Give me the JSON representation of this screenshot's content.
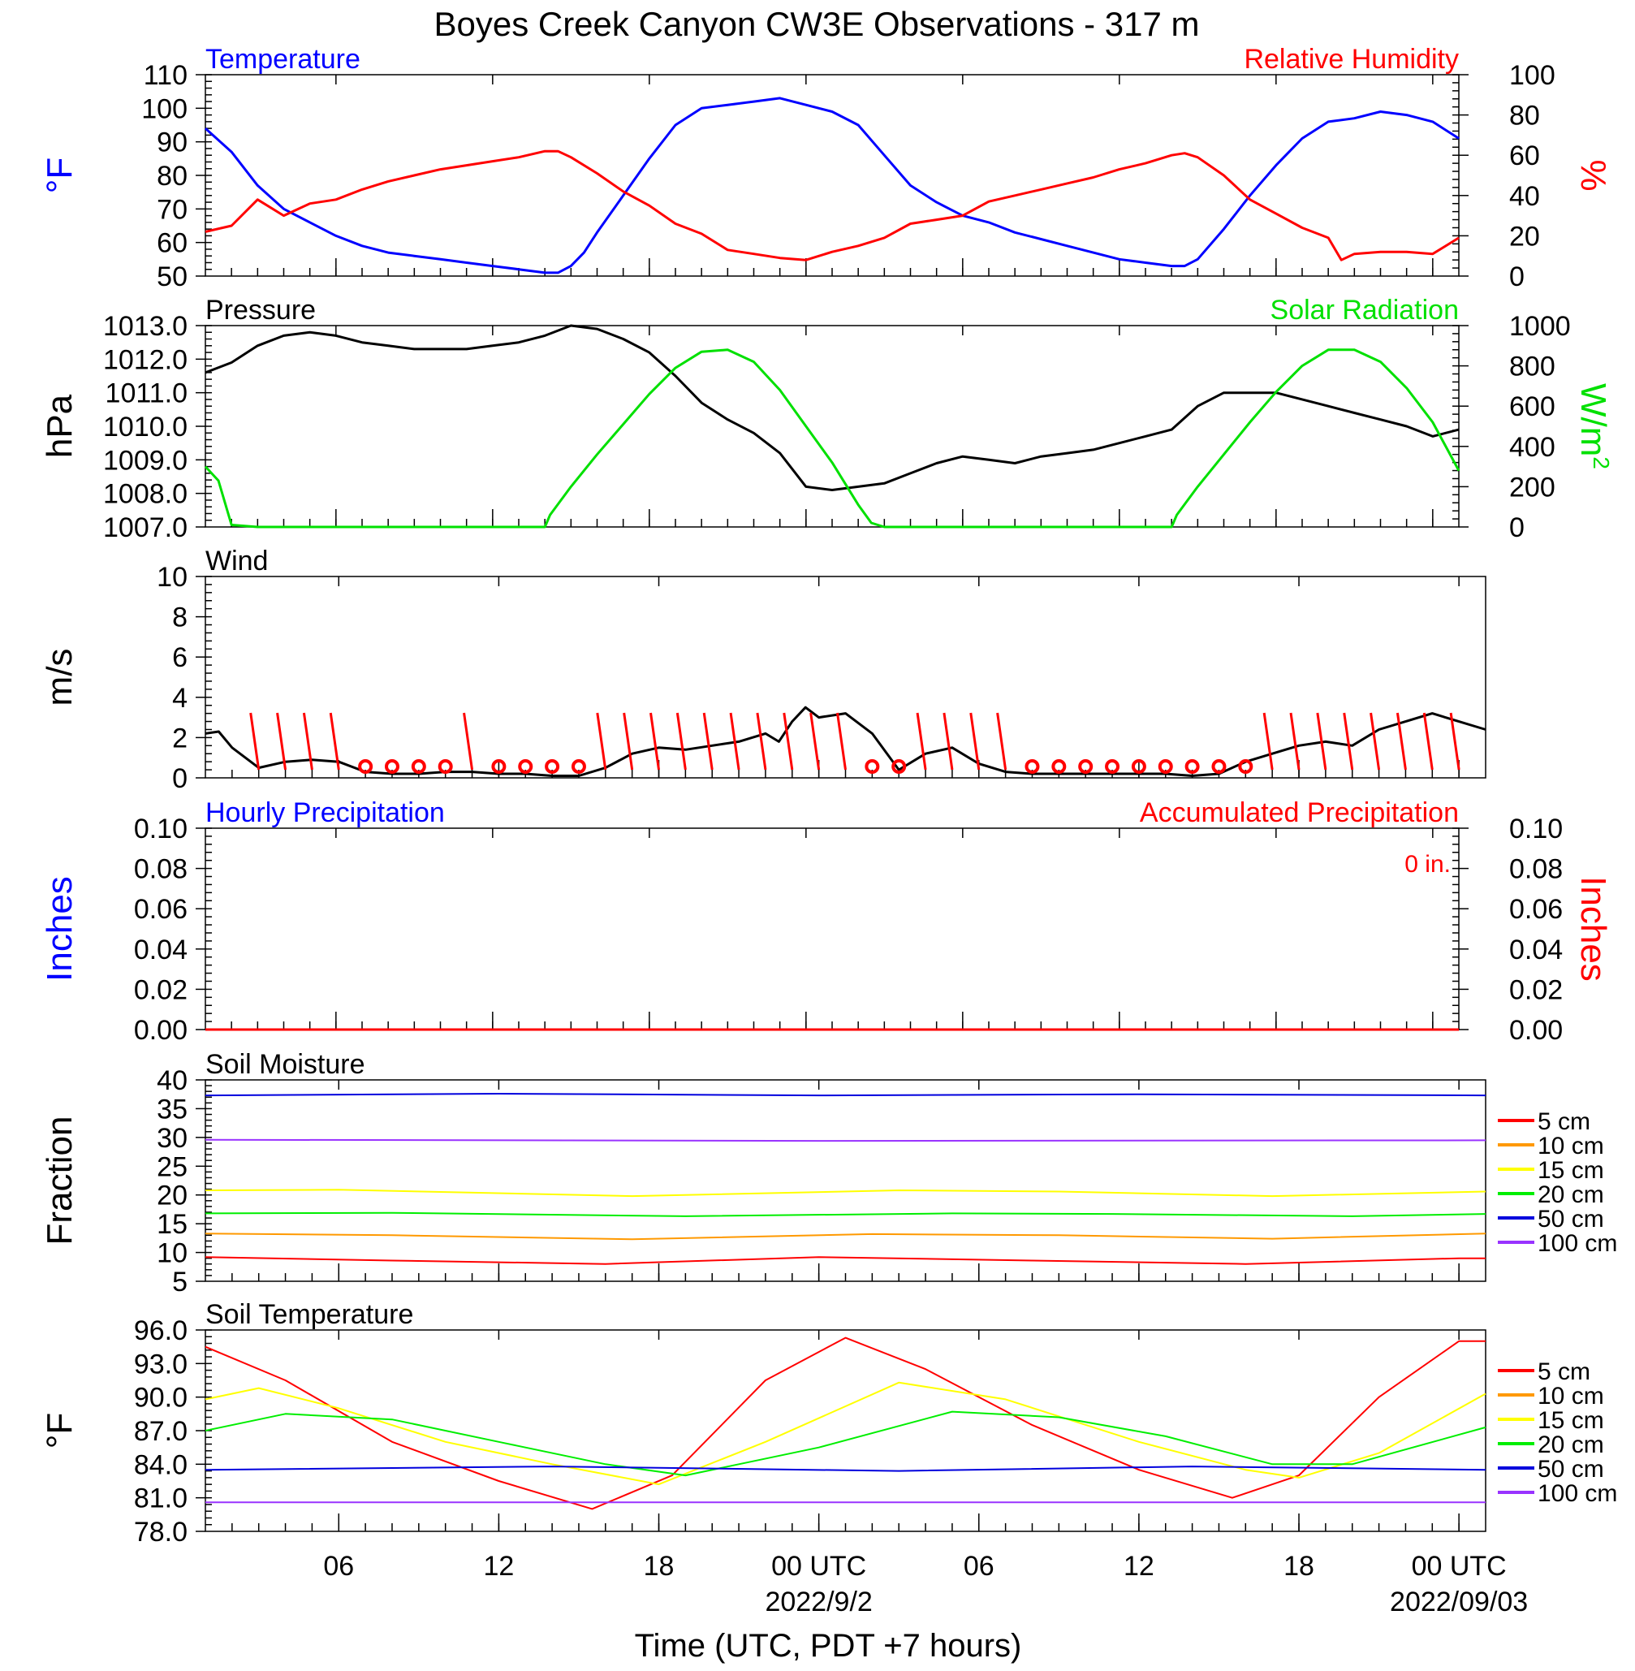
{
  "page": {
    "title": "Boyes Creek Canyon CW3E Observations - 317 m",
    "x_axis_title": "Time (UTC, PDT +7 hours)",
    "x_ticks": [
      {
        "hour": 6,
        "label": "06"
      },
      {
        "hour": 12,
        "label": "12"
      },
      {
        "hour": 18,
        "label": "18"
      },
      {
        "hour": 24,
        "label": "00 UTC",
        "date": "2022/9/2"
      },
      {
        "hour": 30,
        "label": "06"
      },
      {
        "hour": 36,
        "label": "12"
      },
      {
        "hour": 42,
        "label": "18"
      },
      {
        "hour": 48,
        "label": "00 UTC",
        "date": "2022/09/03"
      }
    ]
  },
  "colors": {
    "temperature": "#0000ff",
    "humidity": "#ff0000",
    "pressure": "#000000",
    "solar": "#00e000",
    "wind": "#000000",
    "barb": "#ff0000",
    "soil": {
      "5 cm": "#ff0000",
      "10 cm": "#ff9900",
      "15 cm": "#ffff00",
      "20 cm": "#00ee00",
      "50 cm": "#0000dd",
      "100 cm": "#9933ff"
    }
  },
  "chart_data": [
    {
      "type": "line",
      "panel": "temperature-humidity",
      "left_title": "Temperature",
      "right_title": "Relative Humidity",
      "ylabel": "°F",
      "ylabel_right": "%",
      "ylim": [
        50,
        110
      ],
      "ylim_right": [
        0,
        100
      ],
      "yticks": [
        "110",
        "100",
        "90",
        "80",
        "70",
        "60",
        "50"
      ],
      "yticks_right": [
        "100",
        "80",
        "60",
        "40",
        "20",
        "0"
      ],
      "xlim": [
        1,
        49
      ],
      "series": [
        {
          "key": "temperature",
          "axis": "left",
          "x": [
            1,
            2,
            3,
            4,
            5,
            6,
            7,
            8,
            9,
            10,
            11,
            12,
            13,
            14,
            14.5,
            15,
            15.5,
            16,
            17,
            18,
            19,
            20,
            21,
            22,
            23,
            24,
            25,
            26,
            27,
            28,
            29,
            30,
            31,
            32,
            33,
            34,
            35,
            36,
            37,
            38,
            38.5,
            39,
            40,
            41,
            42,
            43,
            44,
            45,
            46,
            47,
            48,
            49
          ],
          "y": [
            94,
            87,
            77,
            70,
            66,
            62,
            59,
            57,
            56,
            55,
            54,
            53,
            52,
            51,
            51,
            53,
            57,
            63,
            74,
            85,
            95,
            100,
            101,
            102,
            103,
            101,
            99,
            95,
            86,
            77,
            72,
            68,
            66,
            63,
            61,
            59,
            57,
            55,
            54,
            53,
            53,
            55,
            64,
            74,
            83,
            91,
            96,
            97,
            99,
            98,
            96,
            91
          ]
        },
        {
          "key": "humidity",
          "axis": "right",
          "x": [
            1,
            2,
            3,
            4,
            5,
            6,
            7,
            8,
            9,
            10,
            11,
            12,
            13,
            14,
            14.5,
            15,
            16,
            17,
            18,
            19,
            20,
            21,
            22,
            23,
            24,
            25,
            26,
            27,
            28,
            29,
            30,
            31,
            32,
            33,
            34,
            35,
            36,
            37,
            38,
            38.5,
            39,
            40,
            41,
            42,
            43,
            44,
            44.5,
            45,
            46,
            47,
            48,
            49
          ],
          "y": [
            22,
            25,
            38,
            30,
            36,
            38,
            43,
            47,
            50,
            53,
            55,
            57,
            59,
            62,
            62,
            59,
            51,
            42,
            35,
            26,
            21,
            13,
            11,
            9,
            8,
            12,
            15,
            19,
            26,
            28,
            30,
            37,
            40,
            43,
            46,
            49,
            53,
            56,
            60,
            61,
            59,
            50,
            38,
            31,
            24,
            19,
            8,
            11,
            12,
            12,
            11,
            19
          ]
        }
      ]
    },
    {
      "type": "line",
      "panel": "pressure-solar",
      "left_title": "Pressure",
      "right_title": "Solar Radiation",
      "ylabel": "hPa",
      "ylabel_right": "W/m",
      "ylabel_right_sup": "2",
      "ylim": [
        1007,
        1013
      ],
      "ylim_right": [
        0,
        1000
      ],
      "yticks": [
        "1013.0",
        "1012.0",
        "1011.0",
        "1010.0",
        "1009.0",
        "1008.0",
        "1007.0"
      ],
      "yticks_right": [
        "1000",
        "800",
        "600",
        "400",
        "200",
        "0"
      ],
      "xlim": [
        1,
        49
      ],
      "series": [
        {
          "key": "pressure",
          "axis": "left",
          "x": [
            1,
            2,
            3,
            4,
            5,
            6,
            7,
            8,
            9,
            10,
            11,
            12,
            13,
            14,
            15,
            16,
            17,
            18,
            19,
            20,
            21,
            22,
            23,
            24,
            25,
            26,
            27,
            28,
            29,
            30,
            31,
            32,
            33,
            34,
            35,
            36,
            37,
            38,
            39,
            40,
            41,
            42,
            43,
            44,
            45,
            46,
            47,
            48,
            49
          ],
          "y": [
            1011.6,
            1011.9,
            1012.4,
            1012.7,
            1012.8,
            1012.7,
            1012.5,
            1012.4,
            1012.3,
            1012.3,
            1012.3,
            1012.4,
            1012.5,
            1012.7,
            1013.0,
            1012.9,
            1012.6,
            1012.2,
            1011.5,
            1010.7,
            1010.2,
            1009.8,
            1009.2,
            1008.2,
            1008.1,
            1008.2,
            1008.3,
            1008.6,
            1008.9,
            1009.1,
            1009.0,
            1008.9,
            1009.1,
            1009.2,
            1009.3,
            1009.5,
            1009.7,
            1009.9,
            1010.6,
            1011.0,
            1011.0,
            1011.0,
            1010.8,
            1010.6,
            1010.4,
            1010.2,
            1010.0,
            1009.7,
            1009.9
          ]
        },
        {
          "key": "solar",
          "axis": "right",
          "x": [
            1,
            1.5,
            2,
            3,
            13,
            14,
            14.2,
            15,
            16,
            17,
            18,
            19,
            20,
            21,
            22,
            23,
            24,
            25,
            26,
            26.5,
            27,
            28,
            37,
            38,
            38.2,
            39,
            40,
            41,
            42,
            43,
            44,
            45,
            46,
            47,
            48,
            49
          ],
          "y": [
            300,
            230,
            10,
            0,
            0,
            0,
            60,
            200,
            360,
            510,
            660,
            790,
            870,
            880,
            820,
            680,
            500,
            320,
            110,
            20,
            0,
            0,
            0,
            0,
            60,
            200,
            360,
            520,
            670,
            800,
            880,
            880,
            820,
            690,
            520,
            280
          ]
        }
      ]
    },
    {
      "type": "line",
      "panel": "wind",
      "left_title": "Wind",
      "ylabel": "m/s",
      "ylim": [
        0,
        10
      ],
      "yticks": [
        "10",
        "8",
        "6",
        "4",
        "2",
        "0"
      ],
      "xlim": [
        1,
        49
      ],
      "series": [
        {
          "key": "wind",
          "axis": "left",
          "x": [
            1,
            1.5,
            2,
            3,
            4,
            5,
            6,
            7,
            8,
            9,
            10,
            11,
            12,
            13,
            14,
            15,
            16,
            17,
            18,
            19,
            20,
            21,
            22,
            22.5,
            23,
            23.5,
            24,
            25,
            26,
            27,
            28,
            29,
            30,
            31,
            32,
            33,
            34,
            35,
            36,
            37,
            38,
            39,
            40,
            41,
            42,
            43,
            44,
            45,
            46,
            47,
            48,
            49
          ],
          "y": [
            2.2,
            2.3,
            1.5,
            0.5,
            0.8,
            0.9,
            0.8,
            0.3,
            0.2,
            0.2,
            0.3,
            0.3,
            0.2,
            0.2,
            0.1,
            0.1,
            0.5,
            1.2,
            1.5,
            1.4,
            1.6,
            1.8,
            2.2,
            1.8,
            2.8,
            3.5,
            3.0,
            3.2,
            2.2,
            0.4,
            1.2,
            1.5,
            0.7,
            0.3,
            0.2,
            0.2,
            0.2,
            0.2,
            0.2,
            0.2,
            0.1,
            0.2,
            0.8,
            1.2,
            1.6,
            1.8,
            1.6,
            2.4,
            2.8,
            3.2,
            2.8,
            2.4
          ]
        }
      ],
      "calm_hours": [
        7,
        8,
        9,
        10,
        12,
        13,
        14,
        15,
        26,
        27,
        32,
        33,
        34,
        35,
        36,
        37,
        38,
        39,
        40
      ],
      "barb_hours": [
        3,
        4,
        5,
        6,
        11,
        16,
        17,
        18,
        19,
        20,
        21,
        22,
        23,
        24,
        25,
        28,
        29,
        30,
        31,
        41,
        42,
        43,
        44,
        45,
        46,
        47,
        48
      ]
    },
    {
      "type": "bar",
      "panel": "precipitation",
      "left_title": "Hourly Precipitation",
      "right_title": "Accumulated Precipitation",
      "annotation": "0 in.",
      "ylabel": "Inches",
      "ylabel_right": "Inches",
      "ylim": [
        0,
        0.1
      ],
      "ylim_right": [
        0,
        0.1
      ],
      "yticks": [
        "0.10",
        "0.08",
        "0.06",
        "0.04",
        "0.02",
        "0.00"
      ],
      "yticks_right": [
        "0.10",
        "0.08",
        "0.06",
        "0.04",
        "0.02",
        "0.00"
      ],
      "xlim": [
        1,
        49
      ],
      "values": [
        0
      ]
    },
    {
      "type": "line",
      "panel": "soil-moisture",
      "left_title": "Soil Moisture",
      "ylabel": "Fraction",
      "ylim": [
        5,
        40
      ],
      "yticks": [
        "40",
        "35",
        "30",
        "25",
        "20",
        "15",
        "10",
        "5"
      ],
      "xlim": [
        1,
        49
      ],
      "series": [
        {
          "name": "5 cm",
          "x": [
            1,
            8,
            16,
            24,
            32,
            40,
            48,
            49
          ],
          "y": [
            9.2,
            8.6,
            8.0,
            9.2,
            8.6,
            8.0,
            9.0,
            9.0
          ]
        },
        {
          "name": "10 cm",
          "x": [
            1,
            8,
            17,
            26,
            33,
            41,
            49
          ],
          "y": [
            13.3,
            13.0,
            12.3,
            13.2,
            13.0,
            12.4,
            13.3
          ]
        },
        {
          "name": "15 cm",
          "x": [
            1,
            6,
            17,
            27,
            33,
            41,
            49
          ],
          "y": [
            20.8,
            20.9,
            19.8,
            20.8,
            20.6,
            19.8,
            20.6
          ]
        },
        {
          "name": "20 cm",
          "x": [
            1,
            8,
            19,
            29,
            35,
            44,
            49
          ],
          "y": [
            16.8,
            16.9,
            16.3,
            16.8,
            16.7,
            16.3,
            16.7
          ]
        },
        {
          "name": "50 cm",
          "x": [
            1,
            12,
            24,
            36,
            49
          ],
          "y": [
            37.3,
            37.6,
            37.3,
            37.5,
            37.3
          ]
        },
        {
          "name": "100 cm",
          "x": [
            1,
            24,
            49
          ],
          "y": [
            29.6,
            29.4,
            29.5
          ]
        }
      ]
    },
    {
      "type": "line",
      "panel": "soil-temperature",
      "left_title": "Soil Temperature",
      "ylabel": "°F",
      "ylim": [
        78,
        96
      ],
      "yticks": [
        "96.0",
        "93.0",
        "90.0",
        "87.0",
        "84.0",
        "81.0",
        "78.0"
      ],
      "xlim": [
        1,
        49
      ],
      "series": [
        {
          "name": "5 cm",
          "x": [
            1,
            4,
            8,
            12,
            15.5,
            18.5,
            22,
            25,
            28,
            32,
            36,
            39.5,
            42,
            45,
            48,
            49
          ],
          "y": [
            94.5,
            91.5,
            86.0,
            82.5,
            80.0,
            83.0,
            91.5,
            95.3,
            92.5,
            87.5,
            83.5,
            81.0,
            83.0,
            90.0,
            95.0,
            95.0
          ]
        },
        {
          "name": "15 cm",
          "x": [
            1,
            3,
            6,
            10,
            14,
            18,
            22,
            27,
            31,
            36,
            40,
            42,
            45,
            49
          ],
          "y": [
            89.8,
            90.8,
            89.0,
            86.0,
            84.0,
            82.2,
            86.0,
            91.3,
            89.8,
            86.0,
            83.5,
            82.8,
            85.0,
            90.3
          ]
        },
        {
          "name": "20 cm",
          "x": [
            1,
            4,
            8,
            12,
            16,
            19,
            24,
            29,
            33,
            37,
            41,
            44,
            49
          ],
          "y": [
            87.0,
            88.5,
            88.0,
            86.0,
            84.0,
            83.0,
            85.5,
            88.7,
            88.2,
            86.5,
            84.0,
            84.0,
            87.3
          ]
        },
        {
          "name": "50 cm",
          "x": [
            1,
            14,
            27,
            38,
            49
          ],
          "y": [
            83.5,
            83.8,
            83.4,
            83.8,
            83.5
          ]
        },
        {
          "name": "100 cm",
          "x": [
            1,
            25,
            49
          ],
          "y": [
            80.6,
            80.6,
            80.6
          ]
        }
      ],
      "legend": [
        "5 cm",
        "10 cm",
        "15 cm",
        "20 cm",
        "50 cm",
        "100 cm"
      ]
    }
  ]
}
